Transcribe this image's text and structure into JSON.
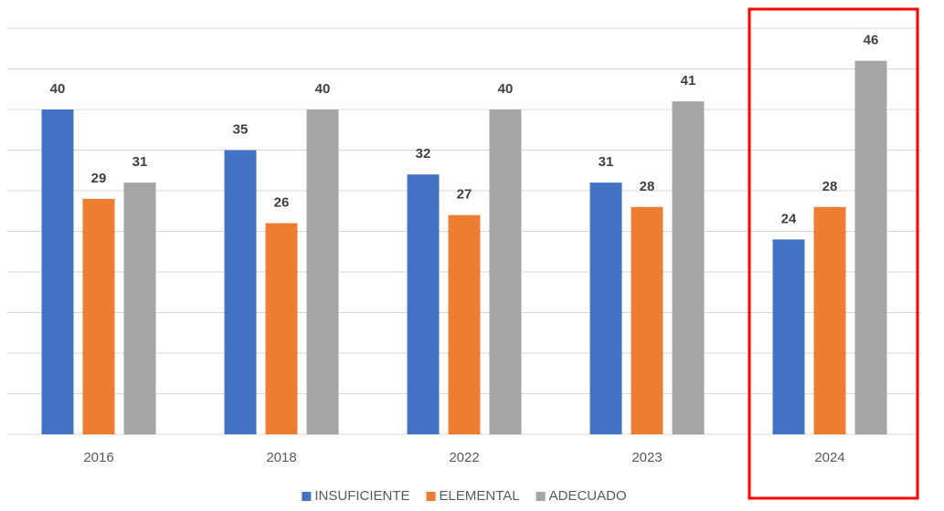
{
  "chart_data": {
    "type": "bar",
    "title": "",
    "xlabel": "",
    "ylabel": "",
    "categories": [
      "2016",
      "2018",
      "2022",
      "2023",
      "2024"
    ],
    "series": [
      {
        "name": "INSUFICIENTE",
        "values": [
          40,
          35,
          32,
          31,
          24
        ],
        "color": "#4472C4"
      },
      {
        "name": "ELEMENTAL",
        "values": [
          29,
          26,
          27,
          28,
          28
        ],
        "color": "#ED7D31"
      },
      {
        "name": "ADECUADO",
        "values": [
          31,
          40,
          40,
          41,
          46
        ],
        "color": "#A5A5A5"
      }
    ],
    "ylim": [
      0,
      50
    ],
    "y_axis_labels_visible": false,
    "grid": true,
    "legend_position": "bottom",
    "highlight": {
      "category": "2024",
      "color": "#FF0000"
    }
  },
  "colors": {
    "grid": "#D9D9D9",
    "label_text": "#404040",
    "tick_text": "#595959"
  }
}
